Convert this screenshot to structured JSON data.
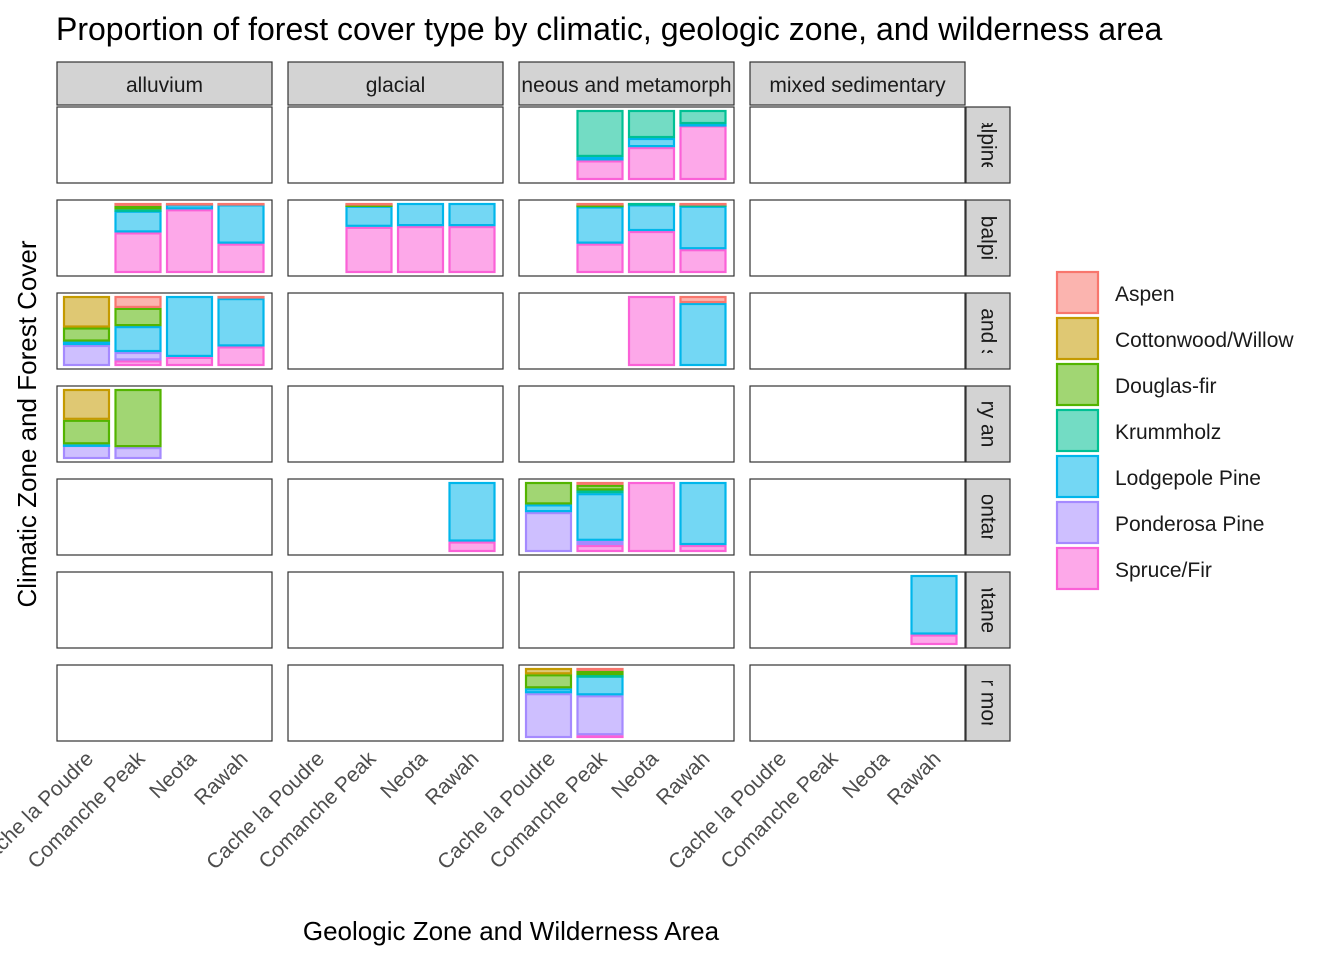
{
  "chart_data": {
    "type": "bar",
    "subtype": "faceted stacked proportion bar",
    "title": "Proportion of forest cover type by climatic, geologic zone, and wilderness area",
    "xlabel": "Geologic Zone and Wilderness Area",
    "ylabel": "Climatic Zone and Forest Cover",
    "ylim": [
      0,
      1
    ],
    "facet_columns": [
      "alluvium",
      "glacial",
      "igneous and metamorphic",
      "mixed sedimentary"
    ],
    "facet_column_labels_shown": [
      "alluvium",
      "glacial",
      "neous and metamorph",
      "mixed sedimentary"
    ],
    "facet_rows": [
      "alpine",
      "subalpine",
      "montane and subalpine",
      "montane dry and montane",
      "montane",
      "montane dry",
      "lower montane"
    ],
    "facet_row_labels_shown": [
      "alpine",
      "ubalpin",
      "e and su",
      "dry and",
      "montane",
      "ontane d",
      "er mont"
    ],
    "categories": [
      "Cache la Poudre",
      "Comanche Peak",
      "Neota",
      "Rawah"
    ],
    "legend": {
      "position": "right",
      "entries": [
        {
          "name": "Aspen",
          "color": "#F8766D"
        },
        {
          "name": "Cottonwood/Willow",
          "color": "#C49A00"
        },
        {
          "name": "Douglas-fir",
          "color": "#53B400"
        },
        {
          "name": "Krummholz",
          "color": "#00C094"
        },
        {
          "name": "Lodgepole Pine",
          "color": "#00B6EB"
        },
        {
          "name": "Ponderosa Pine",
          "color": "#A58AFF"
        },
        {
          "name": "Spruce/Fir",
          "color": "#FB61D7"
        }
      ]
    },
    "grid": false,
    "stack_order": [
      "Spruce/Fir",
      "Ponderosa Pine",
      "Lodgepole Pine",
      "Krummholz",
      "Douglas-fir",
      "Cottonwood/Willow",
      "Aspen"
    ],
    "bars": [
      {
        "row": 0,
        "col": 2,
        "area": "Comanche Peak",
        "total": 1.0,
        "Spruce/Fir": 0.28,
        "Lodgepole Pine": 0.05,
        "Krummholz": 0.67
      },
      {
        "row": 0,
        "col": 2,
        "area": "Neota",
        "total": 1.0,
        "Spruce/Fir": 0.47,
        "Lodgepole Pine": 0.13,
        "Krummholz": 0.4
      },
      {
        "row": 0,
        "col": 2,
        "area": "Rawah",
        "total": 1.0,
        "Spruce/Fir": 0.78,
        "Lodgepole Pine": 0.02,
        "Krummholz": 0.2
      },
      {
        "row": 1,
        "col": 0,
        "area": "Comanche Peak",
        "total": 1.0,
        "Spruce/Fir": 0.58,
        "Lodgepole Pine": 0.31,
        "Douglas-fir": 0.05,
        "Krummholz": 0.02,
        "Aspen": 0.04
      },
      {
        "row": 1,
        "col": 0,
        "area": "Neota",
        "total": 1.0,
        "Spruce/Fir": 0.91,
        "Lodgepole Pine": 0.07,
        "Aspen": 0.02
      },
      {
        "row": 1,
        "col": 0,
        "area": "Rawah",
        "total": 1.0,
        "Spruce/Fir": 0.42,
        "Lodgepole Pine": 0.56,
        "Aspen": 0.02
      },
      {
        "row": 1,
        "col": 1,
        "area": "Comanche Peak",
        "total": 1.0,
        "Spruce/Fir": 0.66,
        "Lodgepole Pine": 0.3,
        "Douglas-fir": 0.02,
        "Aspen": 0.02
      },
      {
        "row": 1,
        "col": 1,
        "area": "Neota",
        "total": 1.0,
        "Spruce/Fir": 0.67,
        "Lodgepole Pine": 0.33
      },
      {
        "row": 1,
        "col": 1,
        "area": "Rawah",
        "total": 1.0,
        "Spruce/Fir": 0.67,
        "Lodgepole Pine": 0.33
      },
      {
        "row": 1,
        "col": 2,
        "area": "Comanche Peak",
        "total": 1.0,
        "Spruce/Fir": 0.42,
        "Lodgepole Pine": 0.53,
        "Krummholz": 0.02,
        "Douglas-fir": 0.01,
        "Aspen": 0.02
      },
      {
        "row": 1,
        "col": 2,
        "area": "Neota",
        "total": 1.0,
        "Spruce/Fir": 0.6,
        "Lodgepole Pine": 0.38,
        "Krummholz": 0.02
      },
      {
        "row": 1,
        "col": 2,
        "area": "Rawah",
        "total": 1.0,
        "Spruce/Fir": 0.34,
        "Lodgepole Pine": 0.62,
        "Krummholz": 0.02,
        "Aspen": 0.02
      },
      {
        "row": 2,
        "col": 0,
        "area": "Cache la Poudre",
        "total": 1.0,
        "Ponderosa Pine": 0.3,
        "Lodgepole Pine": 0.05,
        "Douglas-fir": 0.2,
        "Cottonwood/Willow": 0.45
      },
      {
        "row": 2,
        "col": 0,
        "area": "Comanche Peak",
        "total": 1.0,
        "Spruce/Fir": 0.08,
        "Ponderosa Pine": 0.12,
        "Lodgepole Pine": 0.37,
        "Douglas-fir": 0.26,
        "Aspen": 0.17
      },
      {
        "row": 2,
        "col": 0,
        "area": "Neota",
        "total": 1.0,
        "Spruce/Fir": 0.13,
        "Lodgepole Pine": 0.87
      },
      {
        "row": 2,
        "col": 0,
        "area": "Rawah",
        "total": 1.0,
        "Spruce/Fir": 0.28,
        "Lodgepole Pine": 0.69,
        "Aspen": 0.03
      },
      {
        "row": 2,
        "col": 2,
        "area": "Neota",
        "total": 1.0,
        "Spruce/Fir": 1.0
      },
      {
        "row": 2,
        "col": 2,
        "area": "Rawah",
        "total": 1.0,
        "Lodgepole Pine": 0.9,
        "Aspen": 0.1
      },
      {
        "row": 3,
        "col": 0,
        "area": "Cache la Poudre",
        "total": 1.0,
        "Ponderosa Pine": 0.2,
        "Lodgepole Pine": 0.01,
        "Douglas-fir": 0.35,
        "Cottonwood/Willow": 0.44
      },
      {
        "row": 3,
        "col": 0,
        "area": "Comanche Peak",
        "total": 1.0,
        "Ponderosa Pine": 0.17,
        "Douglas-fir": 0.83
      },
      {
        "row": 4,
        "col": 1,
        "area": "Rawah",
        "total": 1.0,
        "Spruce/Fir": 0.15,
        "Lodgepole Pine": 0.85
      },
      {
        "row": 4,
        "col": 2,
        "area": "Cache la Poudre",
        "total": 1.0,
        "Ponderosa Pine": 0.57,
        "Lodgepole Pine": 0.11,
        "Douglas-fir": 0.32
      },
      {
        "row": 4,
        "col": 2,
        "area": "Comanche Peak",
        "total": 1.0,
        "Spruce/Fir": 0.1,
        "Ponderosa Pine": 0.06,
        "Lodgepole Pine": 0.68,
        "Douglas-fir": 0.08,
        "Krummholz": 0.04,
        "Aspen": 0.04
      },
      {
        "row": 4,
        "col": 2,
        "area": "Neota",
        "total": 1.0,
        "Spruce/Fir": 1.0
      },
      {
        "row": 4,
        "col": 2,
        "area": "Rawah",
        "total": 1.0,
        "Spruce/Fir": 0.1,
        "Lodgepole Pine": 0.9
      },
      {
        "row": 5,
        "col": 3,
        "area": "Rawah",
        "total": 1.0,
        "Spruce/Fir": 0.15,
        "Lodgepole Pine": 0.85
      },
      {
        "row": 6,
        "col": 2,
        "area": "Cache la Poudre",
        "total": 1.0,
        "Ponderosa Pine": 0.64,
        "Lodgepole Pine": 0.07,
        "Douglas-fir": 0.2,
        "Cottonwood/Willow": 0.09
      },
      {
        "row": 6,
        "col": 2,
        "area": "Comanche Peak",
        "total": 1.0,
        "Spruce/Fir": 0.04,
        "Ponderosa Pine": 0.57,
        "Lodgepole Pine": 0.28,
        "Douglas-fir": 0.06,
        "Krummholz": 0.01,
        "Aspen": 0.04
      }
    ]
  }
}
